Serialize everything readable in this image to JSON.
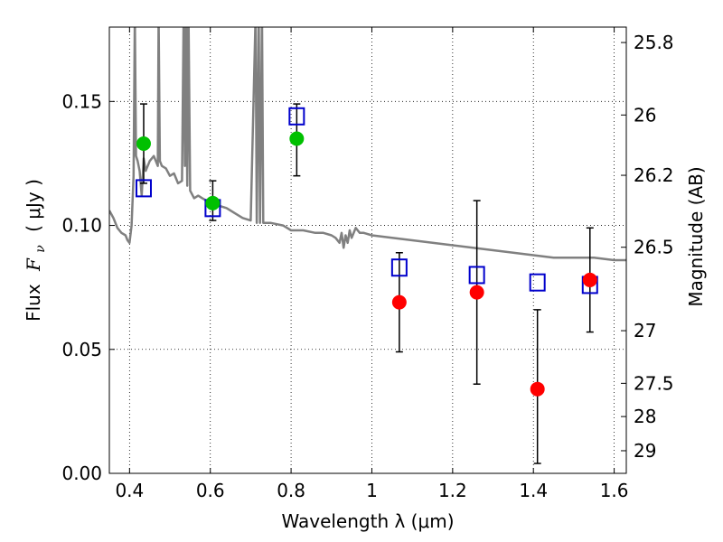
{
  "chart_data": {
    "type": "scatter",
    "xlabel": "Wavelength  λ (μm)",
    "ylabel_prefix": "Flux",
    "ylabel_symbol": "F",
    "ylabel_subscript": "ν",
    "ylabel_unit": "( μJy )",
    "y2label": "Magnitude (AB)",
    "xlim": [
      0.35,
      1.63
    ],
    "ylim": [
      0.0,
      0.18
    ],
    "grid": true,
    "x_ticks": [
      {
        "value": 0.4,
        "label": "0.4"
      },
      {
        "value": 0.6,
        "label": "0.6"
      },
      {
        "value": 0.8,
        "label": "0.8"
      },
      {
        "value": 1.0,
        "label": "1"
      },
      {
        "value": 1.2,
        "label": "1.2"
      },
      {
        "value": 1.4,
        "label": "1.4"
      },
      {
        "value": 1.6,
        "label": "1.6"
      }
    ],
    "y_ticks": [
      {
        "value": 0.0,
        "label": "0.00"
      },
      {
        "value": 0.05,
        "label": "0.05"
      },
      {
        "value": 0.1,
        "label": "0.10"
      },
      {
        "value": 0.15,
        "label": "0.15"
      }
    ],
    "y2_ticks": [
      {
        "value": 25.8,
        "label": "25.8"
      },
      {
        "value": 26.0,
        "label": "26"
      },
      {
        "value": 26.2,
        "label": "26.2"
      },
      {
        "value": 26.5,
        "label": "26.5"
      },
      {
        "value": 27.0,
        "label": "27"
      },
      {
        "value": 27.5,
        "label": "27.5"
      },
      {
        "value": 28.0,
        "label": "28"
      },
      {
        "value": 29.0,
        "label": "29"
      }
    ],
    "model_spectrum": {
      "color": "#808080",
      "points": [
        [
          0.35,
          0.106
        ],
        [
          0.36,
          0.103
        ],
        [
          0.37,
          0.099
        ],
        [
          0.38,
          0.097
        ],
        [
          0.39,
          0.096
        ],
        [
          0.395,
          0.094
        ],
        [
          0.4,
          0.093
        ],
        [
          0.405,
          0.1
        ],
        [
          0.41,
          0.12
        ],
        [
          0.413,
          0.185
        ],
        [
          0.416,
          0.128
        ],
        [
          0.42,
          0.126
        ],
        [
          0.425,
          0.122
        ],
        [
          0.43,
          0.112
        ],
        [
          0.435,
          0.127
        ],
        [
          0.44,
          0.122
        ],
        [
          0.45,
          0.126
        ],
        [
          0.46,
          0.128
        ],
        [
          0.47,
          0.124
        ],
        [
          0.472,
          0.185
        ],
        [
          0.475,
          0.126
        ],
        [
          0.48,
          0.124
        ],
        [
          0.49,
          0.123
        ],
        [
          0.5,
          0.12
        ],
        [
          0.51,
          0.121
        ],
        [
          0.52,
          0.117
        ],
        [
          0.53,
          0.118
        ],
        [
          0.534,
          0.185
        ],
        [
          0.537,
          0.124
        ],
        [
          0.54,
          0.185
        ],
        [
          0.543,
          0.116
        ],
        [
          0.546,
          0.185
        ],
        [
          0.55,
          0.114
        ],
        [
          0.56,
          0.111
        ],
        [
          0.57,
          0.112
        ],
        [
          0.58,
          0.111
        ],
        [
          0.59,
          0.11
        ],
        [
          0.6,
          0.11
        ],
        [
          0.62,
          0.108
        ],
        [
          0.64,
          0.107
        ],
        [
          0.66,
          0.105
        ],
        [
          0.68,
          0.103
        ],
        [
          0.7,
          0.102
        ],
        [
          0.712,
          0.185
        ],
        [
          0.715,
          0.101
        ],
        [
          0.72,
          0.185
        ],
        [
          0.723,
          0.101
        ],
        [
          0.728,
          0.185
        ],
        [
          0.731,
          0.101
        ],
        [
          0.75,
          0.101
        ],
        [
          0.78,
          0.1
        ],
        [
          0.8,
          0.098
        ],
        [
          0.83,
          0.098
        ],
        [
          0.86,
          0.097
        ],
        [
          0.88,
          0.097
        ],
        [
          0.9,
          0.096
        ],
        [
          0.91,
          0.095
        ],
        [
          0.92,
          0.093
        ],
        [
          0.925,
          0.097
        ],
        [
          0.93,
          0.091
        ],
        [
          0.935,
          0.096
        ],
        [
          0.94,
          0.093
        ],
        [
          0.945,
          0.098
        ],
        [
          0.95,
          0.095
        ],
        [
          0.96,
          0.099
        ],
        [
          0.97,
          0.097
        ],
        [
          0.98,
          0.097
        ],
        [
          1.0,
          0.096
        ],
        [
          1.05,
          0.095
        ],
        [
          1.1,
          0.094
        ],
        [
          1.15,
          0.093
        ],
        [
          1.2,
          0.092
        ],
        [
          1.25,
          0.091
        ],
        [
          1.3,
          0.09
        ],
        [
          1.35,
          0.089
        ],
        [
          1.4,
          0.088
        ],
        [
          1.45,
          0.087
        ],
        [
          1.5,
          0.087
        ],
        [
          1.55,
          0.087
        ],
        [
          1.6,
          0.086
        ],
        [
          1.63,
          0.086
        ]
      ]
    },
    "series": [
      {
        "marker": "open-square",
        "color": "#0000cc",
        "points": [
          {
            "x": 0.435,
            "y": 0.115
          },
          {
            "x": 0.606,
            "y": 0.107
          },
          {
            "x": 0.814,
            "y": 0.144
          },
          {
            "x": 1.068,
            "y": 0.083
          },
          {
            "x": 1.26,
            "y": 0.08
          },
          {
            "x": 1.41,
            "y": 0.077
          },
          {
            "x": 1.54,
            "y": 0.076
          }
        ]
      },
      {
        "marker": "filled-circle",
        "color": "#00c000",
        "points": [
          {
            "x": 0.435,
            "y": 0.133,
            "yerr_low": 0.117,
            "yerr_high": 0.149
          },
          {
            "x": 0.606,
            "y": 0.109,
            "yerr_low": 0.102,
            "yerr_high": 0.118
          },
          {
            "x": 0.814,
            "y": 0.135,
            "yerr_low": 0.12,
            "yerr_high": 0.149
          }
        ]
      },
      {
        "marker": "filled-circle",
        "color": "#ff0000",
        "points": [
          {
            "x": 1.068,
            "y": 0.069,
            "yerr_low": 0.049,
            "yerr_high": 0.089
          },
          {
            "x": 1.26,
            "y": 0.073,
            "yerr_low": 0.036,
            "yerr_high": 0.11
          },
          {
            "x": 1.41,
            "y": 0.034,
            "yerr_low": 0.004,
            "yerr_high": 0.066
          },
          {
            "x": 1.54,
            "y": 0.078,
            "yerr_low": 0.057,
            "yerr_high": 0.099
          }
        ]
      }
    ]
  }
}
